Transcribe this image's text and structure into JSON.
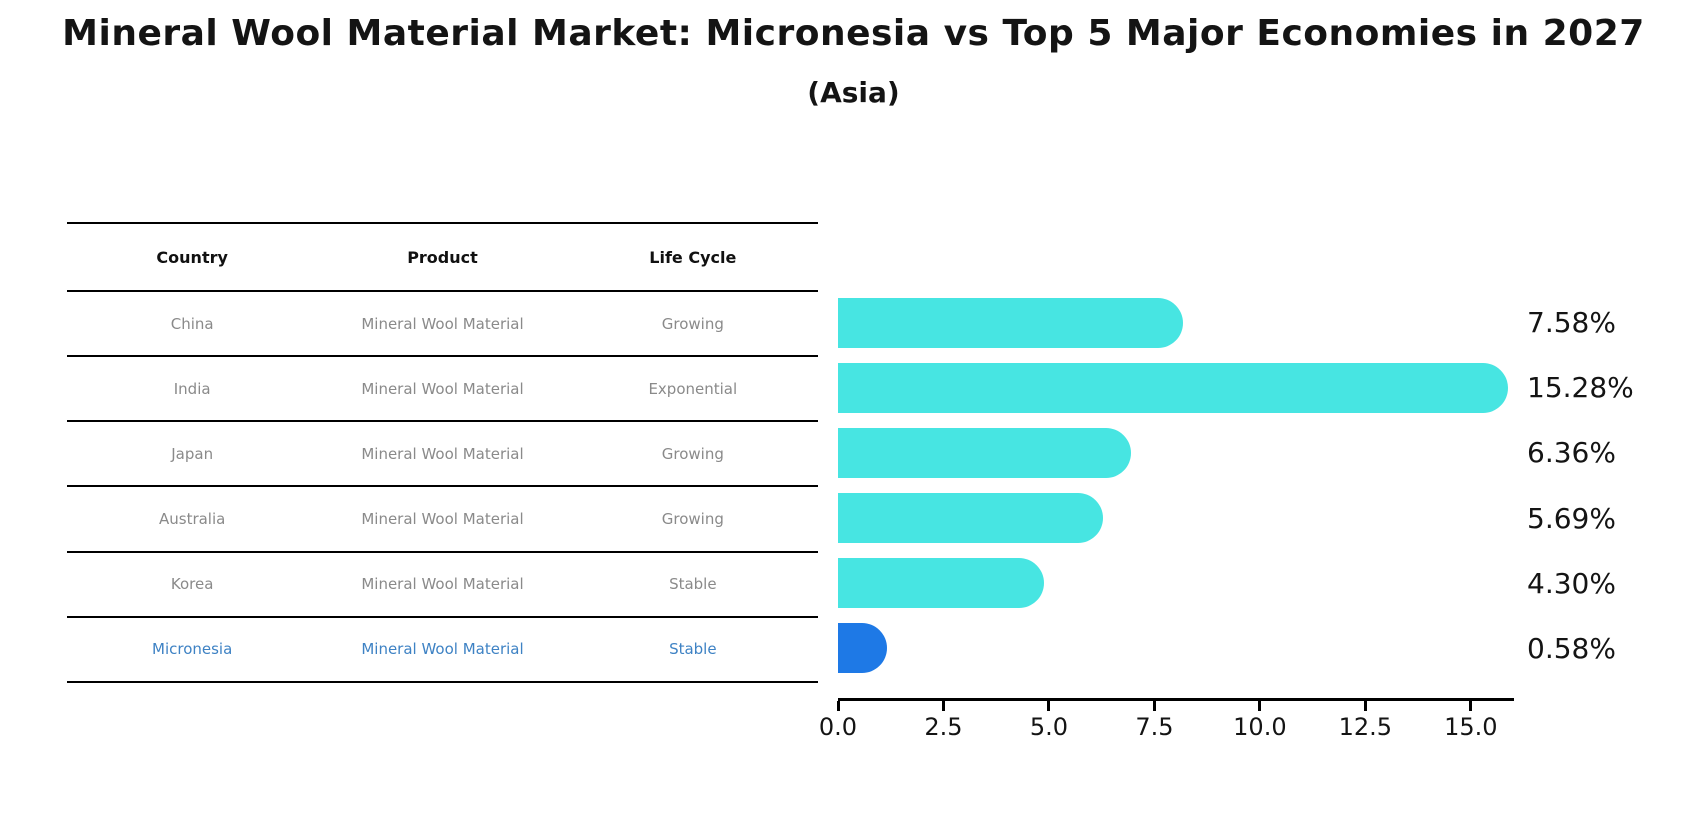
{
  "title": "Mineral Wool Material Market: Micronesia vs Top 5 Major Economies in 2027",
  "subtitle": "(Asia)",
  "table": {
    "headers": [
      "Country",
      "Product",
      "Life Cycle"
    ],
    "rows": [
      {
        "country": "China",
        "product": "Mineral Wool Material",
        "life_cycle": "Growing",
        "highlighted": false
      },
      {
        "country": "India",
        "product": "Mineral Wool Material",
        "life_cycle": "Exponential",
        "highlighted": false
      },
      {
        "country": "Japan",
        "product": "Mineral Wool Material",
        "life_cycle": "Growing",
        "highlighted": false
      },
      {
        "country": "Australia",
        "product": "Mineral Wool Material",
        "life_cycle": "Growing",
        "highlighted": false
      },
      {
        "country": "Korea",
        "product": "Mineral Wool Material",
        "life_cycle": "Stable",
        "highlighted": false
      },
      {
        "country": "Micronesia",
        "product": "Mineral Wool Material",
        "life_cycle": "Stable",
        "highlighted": true
      }
    ]
  },
  "chart_data": {
    "type": "bar",
    "orientation": "horizontal",
    "title": "Mineral Wool Material Market: Micronesia vs Top 5 Major Economies in 2027 (Asia)",
    "categories": [
      "China",
      "India",
      "Japan",
      "Australia",
      "Korea",
      "Micronesia"
    ],
    "values": [
      7.58,
      15.28,
      6.36,
      5.69,
      4.3,
      0.58
    ],
    "value_labels": [
      "7.58%",
      "15.28%",
      "6.36%",
      "5.69%",
      "4.30%",
      "0.58%"
    ],
    "x_tick_labels": [
      "0.0",
      "2.5",
      "5.0",
      "7.5",
      "10.0",
      "12.5",
      "15.0"
    ],
    "x_tick_values": [
      0,
      2.5,
      5,
      7.5,
      10,
      12.5,
      15
    ],
    "xlim": [
      0,
      16
    ],
    "grid": false,
    "legend": false,
    "highlight_index": 5,
    "colors": {
      "bar_default": "#47e5e2",
      "bar_highlight": "#1e79e6",
      "highlight_text": "#3e82c4",
      "cell_text": "#8a8a8a",
      "header_text": "#111111",
      "axis": "#000000",
      "value_text": "#141414"
    }
  }
}
